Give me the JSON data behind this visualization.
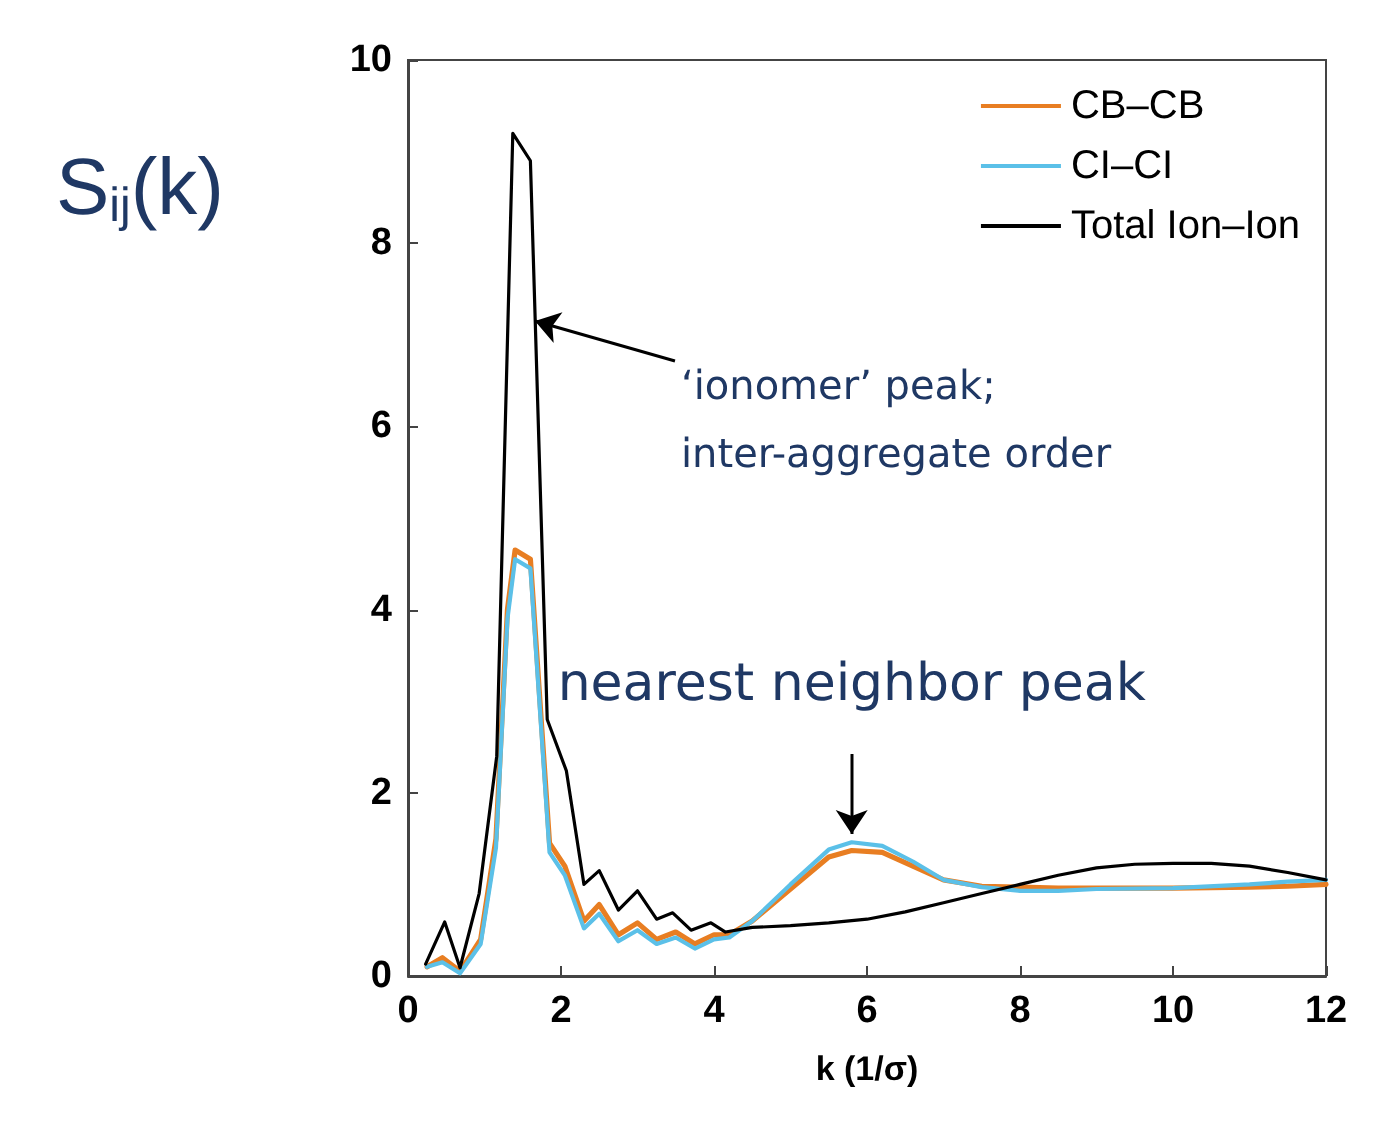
{
  "chart_data": {
    "type": "line",
    "xlabel": "k (1/σ)",
    "ylabel": "S$_{ij}$(k)",
    "xlim": [
      0,
      12
    ],
    "ylim": [
      0,
      10
    ],
    "xticks": [
      0,
      2,
      4,
      6,
      8,
      10,
      12
    ],
    "yticks": [
      0,
      2,
      4,
      6,
      8,
      10
    ],
    "grid": false,
    "legend": "top right",
    "marker": "none",
    "line_style": "solid",
    "series": [
      {
        "name": "CB–CB",
        "color": "#e87e22",
        "x": [
          0.25,
          0.45,
          0.68,
          0.95,
          1.15,
          1.3,
          1.4,
          1.6,
          1.85,
          2.05,
          2.3,
          2.5,
          2.75,
          3.0,
          3.25,
          3.5,
          3.75,
          4.0,
          4.2,
          4.5,
          5.0,
          5.5,
          5.8,
          6.2,
          6.6,
          7.0,
          7.5,
          8.0,
          8.5,
          9.0,
          10.0,
          11.0,
          11.5,
          12.0
        ],
        "values": [
          0.1,
          0.2,
          0.05,
          0.4,
          1.5,
          4.0,
          4.65,
          4.55,
          1.45,
          1.2,
          0.6,
          0.78,
          0.45,
          0.58,
          0.4,
          0.48,
          0.35,
          0.45,
          0.45,
          0.6,
          0.95,
          1.3,
          1.37,
          1.35,
          1.2,
          1.05,
          0.98,
          0.97,
          0.96,
          0.96,
          0.96,
          0.97,
          0.98,
          1.0
        ]
      },
      {
        "name": "CI–CI",
        "color": "#5bc0e8",
        "x": [
          0.25,
          0.45,
          0.68,
          0.95,
          1.15,
          1.3,
          1.4,
          1.6,
          1.85,
          2.05,
          2.3,
          2.5,
          2.75,
          3.0,
          3.25,
          3.5,
          3.75,
          4.0,
          4.2,
          4.5,
          5.0,
          5.5,
          5.8,
          6.2,
          6.6,
          7.0,
          7.5,
          8.0,
          8.5,
          9.0,
          10.0,
          11.0,
          11.5,
          12.0
        ],
        "values": [
          0.1,
          0.15,
          0.03,
          0.35,
          1.4,
          3.9,
          4.55,
          4.45,
          1.35,
          1.1,
          0.52,
          0.68,
          0.38,
          0.5,
          0.35,
          0.42,
          0.3,
          0.4,
          0.42,
          0.6,
          1.0,
          1.38,
          1.46,
          1.42,
          1.25,
          1.05,
          0.97,
          0.93,
          0.93,
          0.95,
          0.96,
          1.0,
          1.03,
          1.05
        ]
      },
      {
        "name": "Total Ion–Ion",
        "color": "#000000",
        "x": [
          0.23,
          0.48,
          0.68,
          0.93,
          1.16,
          1.37,
          1.6,
          1.82,
          2.07,
          2.3,
          2.5,
          2.75,
          3.0,
          3.25,
          3.46,
          3.7,
          3.96,
          4.15,
          4.5,
          5.0,
          5.5,
          6.0,
          6.5,
          7.0,
          7.5,
          8.0,
          8.5,
          9.0,
          9.5,
          10.0,
          10.5,
          11.0,
          11.5,
          12.0
        ],
        "values": [
          0.13,
          0.59,
          0.09,
          0.9,
          2.4,
          9.2,
          8.9,
          2.8,
          2.24,
          1.0,
          1.15,
          0.72,
          0.93,
          0.62,
          0.69,
          0.5,
          0.58,
          0.48,
          0.53,
          0.55,
          0.58,
          0.62,
          0.7,
          0.8,
          0.9,
          1.0,
          1.1,
          1.18,
          1.22,
          1.23,
          1.23,
          1.2,
          1.13,
          1.05
        ]
      }
    ],
    "annotations": [
      {
        "text": "‘ionomer’ peak;\ninter-aggregate order",
        "x": 1.66,
        "y": 7.15
      },
      {
        "text": "nearest neighbor peak",
        "x": 5.8,
        "y": 1.55
      }
    ]
  }
}
